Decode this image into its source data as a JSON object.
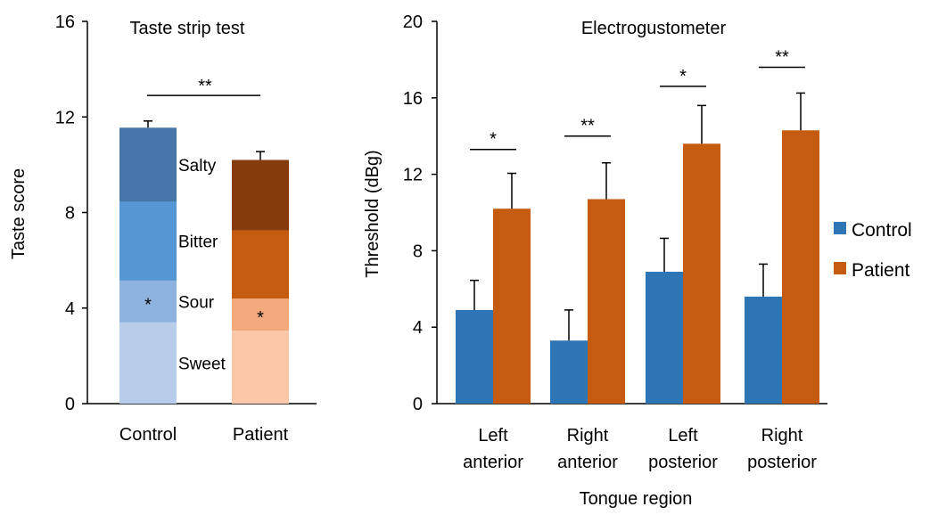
{
  "chart_data": [
    {
      "type": "bar",
      "stacked": true,
      "title": "Taste strip test",
      "xlabel": "",
      "ylabel": "Taste score",
      "ylim": [
        0,
        16
      ],
      "yticks": [
        0,
        4,
        8,
        12,
        16
      ],
      "categories": [
        "Control",
        "Patient"
      ],
      "series": [
        {
          "name": "Sweet",
          "values": [
            3.4,
            3.05
          ],
          "colors": [
            "#b8cde9",
            "#f8c8a8"
          ]
        },
        {
          "name": "Sour",
          "values": [
            1.75,
            1.35
          ],
          "colors": [
            "#8fb3df",
            "#f2aa7c"
          ]
        },
        {
          "name": "Bitter",
          "values": [
            3.3,
            2.85
          ],
          "colors": [
            "#5597d3",
            "#c55a11"
          ]
        },
        {
          "name": "Salty",
          "values": [
            3.1,
            2.95
          ],
          "colors": [
            "#4777aa",
            "#843c0c"
          ]
        }
      ],
      "totals": [
        11.55,
        10.2
      ],
      "errors": [
        0.28,
        0.35
      ],
      "segment_marks": [
        {
          "category": "Control",
          "segment": "Sour",
          "text": "*"
        },
        {
          "category": "Patient",
          "segment": "Sour",
          "text": "*"
        }
      ],
      "significance": [
        {
          "between": [
            "Control",
            "Patient"
          ],
          "text": "**",
          "y": 12.9
        }
      ],
      "grid": false
    },
    {
      "type": "bar",
      "title": "Electrogustometer",
      "xlabel": "Tongue region",
      "ylabel": "Threshold (dBg)",
      "ylim": [
        0,
        20
      ],
      "yticks": [
        0,
        4,
        8,
        12,
        16,
        20
      ],
      "categories": [
        [
          "Left",
          "anterior"
        ],
        [
          "Right",
          "anterior"
        ],
        [
          "Left",
          "posterior"
        ],
        [
          "Right",
          "posterior"
        ]
      ],
      "series": [
        {
          "name": "Control",
          "color": "#2e75b6",
          "values": [
            4.9,
            3.3,
            6.9,
            5.6
          ],
          "errors": [
            1.55,
            1.6,
            1.75,
            1.7
          ]
        },
        {
          "name": "Patient",
          "color": "#c55a11",
          "values": [
            10.2,
            10.7,
            13.6,
            14.3
          ],
          "errors": [
            1.85,
            1.9,
            2.0,
            1.95
          ]
        }
      ],
      "significance": [
        {
          "category": 0,
          "text": "*",
          "y": 13.3
        },
        {
          "category": 1,
          "text": "**",
          "y": 14.0
        },
        {
          "category": 2,
          "text": "*",
          "y": 16.6
        },
        {
          "category": 3,
          "text": "**",
          "y": 17.6
        }
      ],
      "legend": "right",
      "grid": false
    }
  ]
}
